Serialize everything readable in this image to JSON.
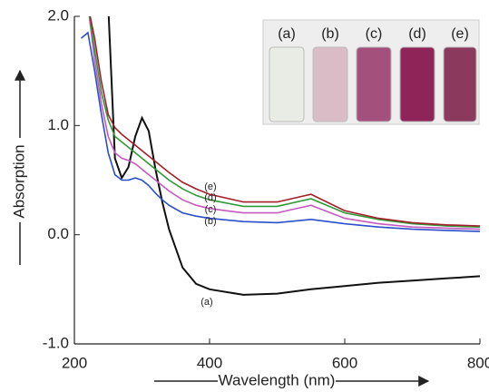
{
  "chart_data": {
    "type": "line",
    "xlabel": "Wavelength (nm)",
    "ylabel": "Absorption",
    "x": [
      210,
      220,
      230,
      240,
      250,
      260,
      270,
      280,
      290,
      300,
      310,
      320,
      330,
      340,
      360,
      380,
      400,
      450,
      500,
      550,
      600,
      650,
      700,
      750,
      800
    ],
    "series": [
      {
        "name": "(a)",
        "color": "#111111",
        "values": [
          null,
          null,
          null,
          null,
          2.1,
          0.7,
          0.52,
          0.62,
          0.9,
          1.07,
          0.95,
          0.6,
          0.3,
          0.05,
          -0.3,
          -0.45,
          -0.5,
          -0.55,
          -0.54,
          -0.5,
          -0.47,
          -0.44,
          -0.42,
          -0.4,
          -0.38
        ]
      },
      {
        "name": "(b)",
        "color": "#2a4fc8",
        "values": [
          1.8,
          1.85,
          1.5,
          1.1,
          0.75,
          0.55,
          0.5,
          0.5,
          0.52,
          0.5,
          0.45,
          0.38,
          0.32,
          0.27,
          0.2,
          0.17,
          0.15,
          0.12,
          0.11,
          0.14,
          0.1,
          0.07,
          0.05,
          0.04,
          0.03
        ]
      },
      {
        "name": "(c)",
        "color": "#c659c0",
        "values": [
          2.1,
          2.1,
          1.6,
          1.2,
          0.9,
          0.75,
          0.7,
          0.68,
          0.65,
          0.6,
          0.55,
          0.5,
          0.45,
          0.4,
          0.32,
          0.27,
          0.24,
          0.2,
          0.2,
          0.27,
          0.15,
          0.1,
          0.07,
          0.06,
          0.05
        ]
      },
      {
        "name": "(d)",
        "color": "#2e9a3a",
        "values": [
          2.1,
          2.1,
          1.7,
          1.3,
          1.05,
          0.9,
          0.85,
          0.8,
          0.75,
          0.7,
          0.65,
          0.6,
          0.55,
          0.5,
          0.42,
          0.36,
          0.32,
          0.26,
          0.26,
          0.33,
          0.2,
          0.14,
          0.1,
          0.08,
          0.07
        ]
      },
      {
        "name": "(e)",
        "color": "#a3202a",
        "values": [
          2.1,
          2.1,
          1.8,
          1.4,
          1.1,
          0.98,
          0.92,
          0.87,
          0.82,
          0.77,
          0.72,
          0.67,
          0.62,
          0.57,
          0.48,
          0.42,
          0.37,
          0.3,
          0.3,
          0.37,
          0.22,
          0.15,
          0.11,
          0.09,
          0.08
        ]
      }
    ],
    "xlim": [
      200,
      800
    ],
    "ylim": [
      -1.0,
      2.0
    ],
    "xticks": [
      200,
      400,
      600,
      800
    ],
    "yticks": [
      {
        "value": -1.0,
        "label": "-1.0"
      },
      {
        "value": 0.0,
        "label": "0.0"
      },
      {
        "value": 1.0,
        "label": "1.0"
      },
      {
        "value": 2.0,
        "label": "2.0"
      }
    ],
    "grid": false
  }
}
